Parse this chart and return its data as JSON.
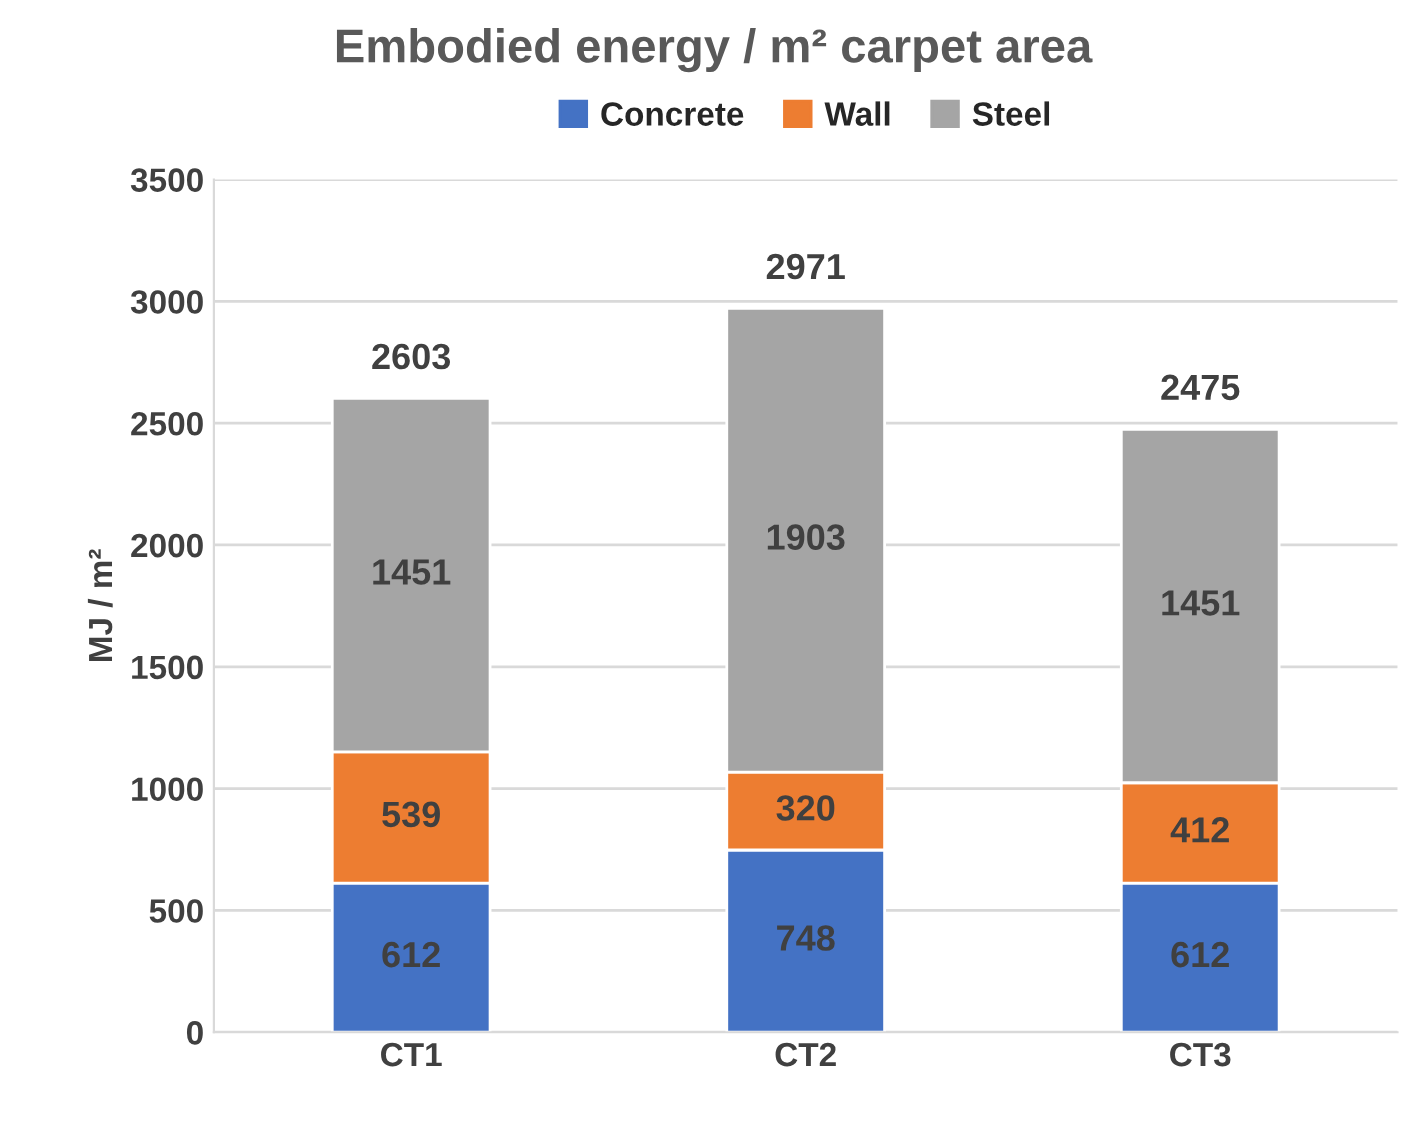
{
  "chart_data": {
    "type": "bar",
    "title": "Embodied energy / m² carpet area",
    "ylabel": "MJ / m²",
    "categories": [
      "CT1",
      "CT2",
      "CT3"
    ],
    "series": [
      {
        "name": "Concrete",
        "color": "#4472c4",
        "values": [
          612,
          748,
          612
        ]
      },
      {
        "name": "Wall",
        "color": "#ed7d31",
        "values": [
          539,
          320,
          412
        ]
      },
      {
        "name": "Steel",
        "color": "#a5a5a5",
        "values": [
          1451,
          1903,
          1451
        ]
      }
    ],
    "stacked": true,
    "data_labels": true,
    "totals": [
      "2603",
      "2971",
      "2475"
    ],
    "ylim": [
      0,
      3500
    ],
    "yticks": [
      0,
      500,
      1000,
      1500,
      2000,
      2500,
      3000,
      3500
    ],
    "grid": "y",
    "legend": "top"
  }
}
